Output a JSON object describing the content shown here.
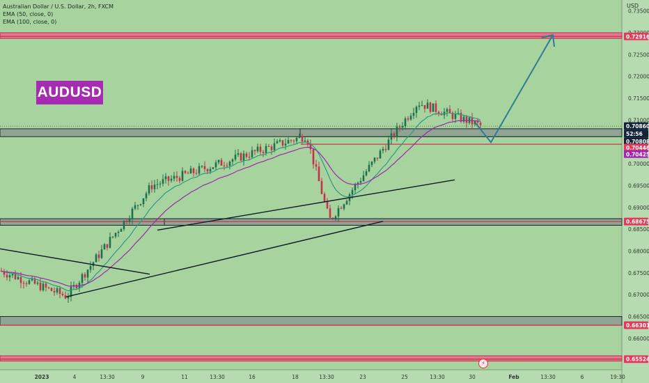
{
  "header": {
    "symbol_line": "Australian Dollar / U.S. Dollar, 2h, FXCM",
    "ema50": "EMA (50, close, 0)",
    "ema100": "EMA (100, close, 0)"
  },
  "badge_text": "AUDUSD",
  "currency_label": "USD",
  "alert_icon": "lightning-icon",
  "colors": {
    "background": "#a6d39e",
    "zone_red": "#e05a78",
    "zone_dark": "#1c2633",
    "ema50": "#2e9a83",
    "ema100": "#a126b0",
    "arrow": "#2e7d93",
    "candle": "#c8304a"
  },
  "chart_data": {
    "type": "candlestick",
    "y_axis": {
      "ticks": [
        "0.73500",
        "0.73000",
        "0.72500",
        "0.72000",
        "0.71500",
        "0.71000",
        "0.70500",
        "0.70000",
        "0.69500",
        "0.69000",
        "0.68500",
        "0.68000",
        "0.67500",
        "0.67000",
        "0.66500",
        "0.66000"
      ],
      "ylim": [
        0.6528,
        0.7375
      ]
    },
    "x_axis": {
      "ticks": [
        "2023",
        "4",
        "13:30",
        "9",
        "11",
        "13:30",
        "16",
        "18",
        "13:30",
        "23",
        "25",
        "13:30",
        "30",
        "Feb",
        "13:30",
        "6",
        "19:30"
      ]
    },
    "price_labels": [
      {
        "value": "0.72916",
        "kind": "red"
      },
      {
        "value": "0.70860",
        "kind": "dark"
      },
      {
        "value": "52:56",
        "kind": "dark-countdown"
      },
      {
        "value": "0.70808",
        "kind": "dark"
      },
      {
        "value": "0.70446",
        "kind": "red"
      },
      {
        "value": "0.70425",
        "kind": "purple"
      },
      {
        "value": "0.68675",
        "kind": "red"
      },
      {
        "value": "0.66301",
        "kind": "red"
      },
      {
        "value": "0.65524",
        "kind": "red"
      }
    ],
    "zones": [
      {
        "kind": "red",
        "from": 0.7287,
        "to": 0.73
      },
      {
        "kind": "dark",
        "from": 0.7062,
        "to": 0.708
      },
      {
        "kind": "dark",
        "from": 0.6859,
        "to": 0.6874
      },
      {
        "kind": "dark",
        "from": 0.663,
        "to": 0.665
      },
      {
        "kind": "red",
        "from": 0.6548,
        "to": 0.656
      }
    ],
    "levels": [
      0.72916,
      0.70446,
      0.68675,
      0.66301,
      0.65524
    ],
    "current_price": 0.7086,
    "key_points": [
      {
        "label": "start",
        "price": 0.6755
      },
      {
        "label": "low-jan-4",
        "price": 0.6696
      },
      {
        "label": "high-jan-10",
        "price": 0.695
      },
      {
        "label": "high-jan-18",
        "price": 0.7065
      },
      {
        "label": "low-jan-19",
        "price": 0.687
      },
      {
        "label": "high-jan-26",
        "price": 0.714
      },
      {
        "label": "last",
        "price": 0.7086
      }
    ],
    "ema_series": [
      {
        "name": "EMA (50, close, 0)"
      },
      {
        "name": "EMA (100, close, 0)"
      }
    ],
    "projection": {
      "from": 0.7049,
      "to": 0.7295
    }
  }
}
